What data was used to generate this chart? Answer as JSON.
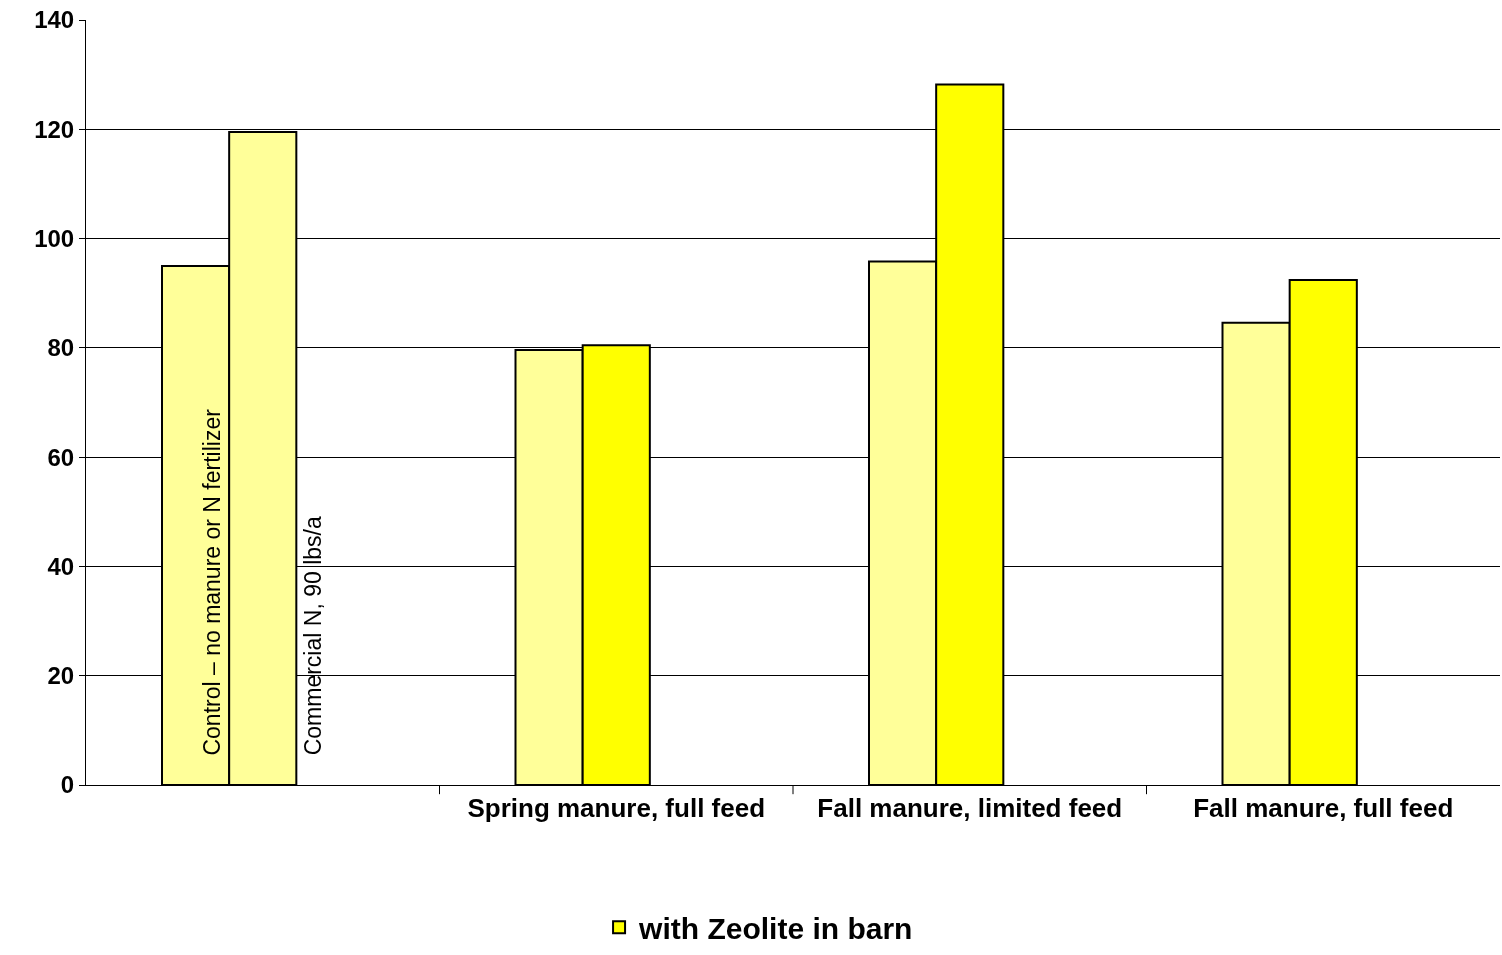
{
  "chart_data": {
    "type": "bar",
    "categories": [
      null,
      "Spring manure, full feed",
      "Fall manure, limited feed",
      "Fall manure, full feed"
    ],
    "series": [
      {
        "color": "#ffff99",
        "values": [
          95,
          79.6,
          95.8,
          84.6
        ]
      },
      {
        "name": "with Zeolite in barn",
        "color": "#ffff00",
        "colors": [
          "#ffff99",
          "#ffff00",
          "#ffff00",
          "#ffff00"
        ],
        "values": [
          119.5,
          80.5,
          128.2,
          92.4
        ]
      }
    ],
    "annotations": [
      "Control – no manure or N fertilizer",
      "Commercial N, 90 lbs/a"
    ],
    "ylim": [
      0,
      140
    ],
    "yticks": [
      0,
      20,
      40,
      60,
      80,
      100,
      120,
      140
    ],
    "grid": "y",
    "legend": "bottom"
  }
}
